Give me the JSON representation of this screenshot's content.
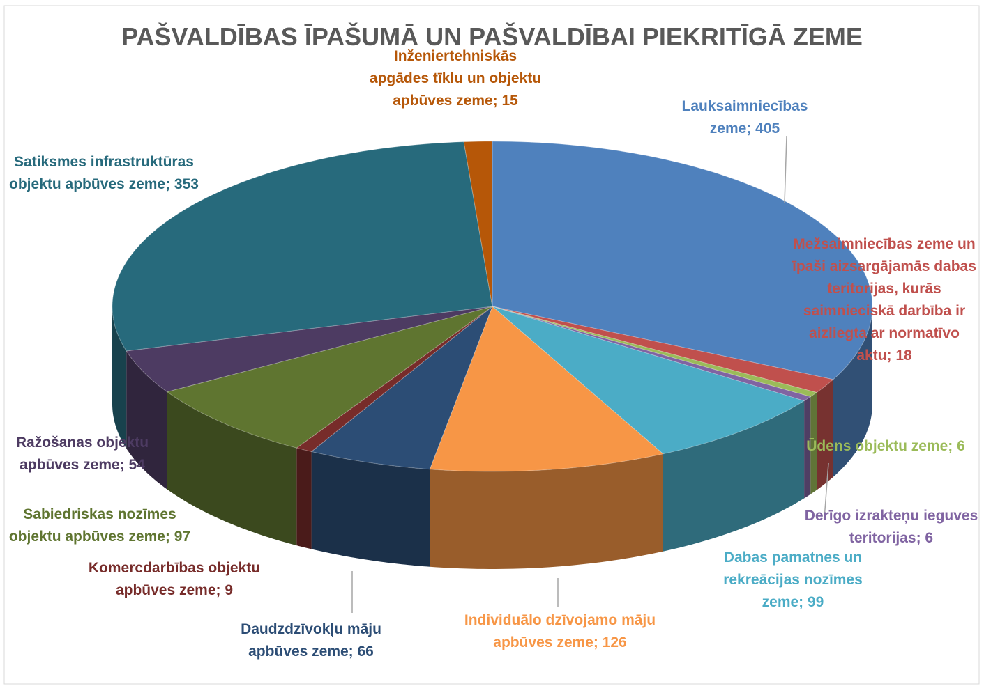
{
  "chart_data": {
    "type": "pie",
    "title": "PAŠVALDĪBAS ĪPAŠUMĀ UN PAŠVALDĪBAI PIEKRITĪGĀ ZEME",
    "values": [
      405,
      18,
      6,
      6,
      99,
      126,
      66,
      9,
      97,
      54,
      353,
      15
    ],
    "value_labels": [
      "Lauksaimniecības zeme; 405",
      "Mežsaimniecības zeme un īpaši aizsargājamās dabas teritorijas, kurās saimnieciskā darbība ir aizliegta ar normatīvo aktu; 18",
      "Ūdens objektu zeme; 6",
      "Derīgo izrakteņu ieguves teritorijas; 6",
      "Dabas pamatnes un rekreācijas nozīmes zeme; 99",
      "Individuālo dzīvojamo māju apbūves zeme; 126",
      "Daudzdzīvokļu māju apbūves zeme; 66",
      "Komercdarbības objektu apbūves zeme; 9",
      "Sabiedriskas nozīmes objektu apbūves zeme; 97",
      "Ražošanas objektu apbūves zeme; 54",
      "Satiksmes infrastruktūras objektu apbūves zeme; 353",
      "Inženiertehniskās apgādes tīklu un objektu apbūves zeme; 15"
    ],
    "colors": [
      "#4f81bd",
      "#c0504d",
      "#9bbb59",
      "#8064a2",
      "#4bacc6",
      "#f79646",
      "#2c4d75",
      "#772c2a",
      "#5f7530",
      "#4d3b62",
      "#276a7c",
      "#b65708"
    ]
  }
}
